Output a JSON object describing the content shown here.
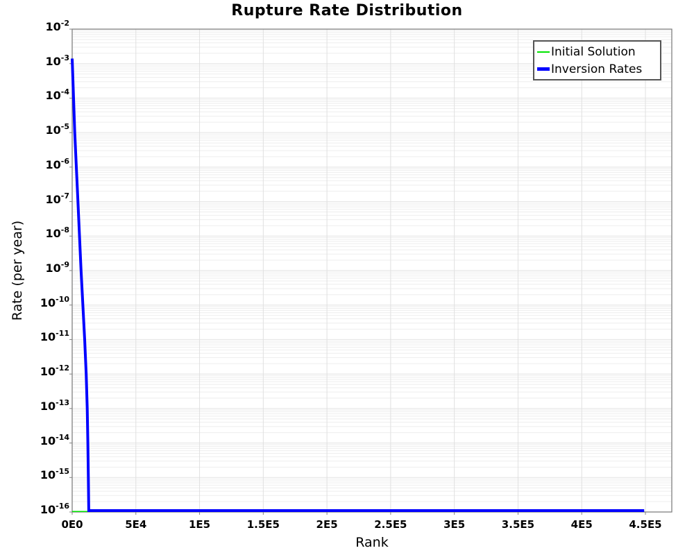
{
  "chart_data": {
    "type": "line",
    "title": "Rupture Rate Distribution",
    "xlabel": "Rank",
    "ylabel": "Rate (per year)",
    "x_axis": {
      "min": 0,
      "max": 470000,
      "tick_values": [
        0,
        50000,
        100000,
        150000,
        200000,
        250000,
        300000,
        350000,
        400000,
        450000
      ],
      "tick_labels": [
        "0E0",
        "5E4",
        "1E5",
        "1.5E5",
        "2E5",
        "2.5E5",
        "3E5",
        "3.5E5",
        "4E5",
        "4.5E5"
      ]
    },
    "y_axis": {
      "scale": "log",
      "min": 1e-16,
      "max": 0.01,
      "tick_base": "10",
      "tick_exponents": [
        -2,
        -3,
        -4,
        -5,
        -6,
        -7,
        -8,
        -9,
        -10,
        -11,
        -12,
        -13,
        -14,
        -15,
        -16
      ]
    },
    "grid": {
      "major_color": "#e2e2e2",
      "minor_color": "#eeeeee",
      "vertical_color": "#e0e0e0",
      "border_color": "#808080",
      "tick_color": "#808080"
    },
    "legend": {
      "position": "top-right",
      "border_color": "#545454"
    },
    "series": [
      {
        "name": "Initial Solution",
        "color": "#00e400",
        "stroke_width": 1.5,
        "points": [
          [
            0,
            1e-16
          ],
          [
            449000,
            1e-16
          ]
        ]
      },
      {
        "name": "Inversion Rates",
        "color": "#0000ff",
        "stroke_width": 4,
        "points": [
          [
            0,
            0.0014
          ],
          [
            2000,
            1e-05
          ],
          [
            4500,
            1e-07
          ],
          [
            7000,
            1e-09
          ],
          [
            9800,
            1e-11
          ],
          [
            11000,
            1e-12
          ],
          [
            11800,
            1e-13
          ],
          [
            12300,
            1e-14
          ],
          [
            12700,
            1e-15
          ],
          [
            13000,
            1e-16
          ],
          [
            449000,
            1e-16
          ]
        ]
      }
    ]
  }
}
